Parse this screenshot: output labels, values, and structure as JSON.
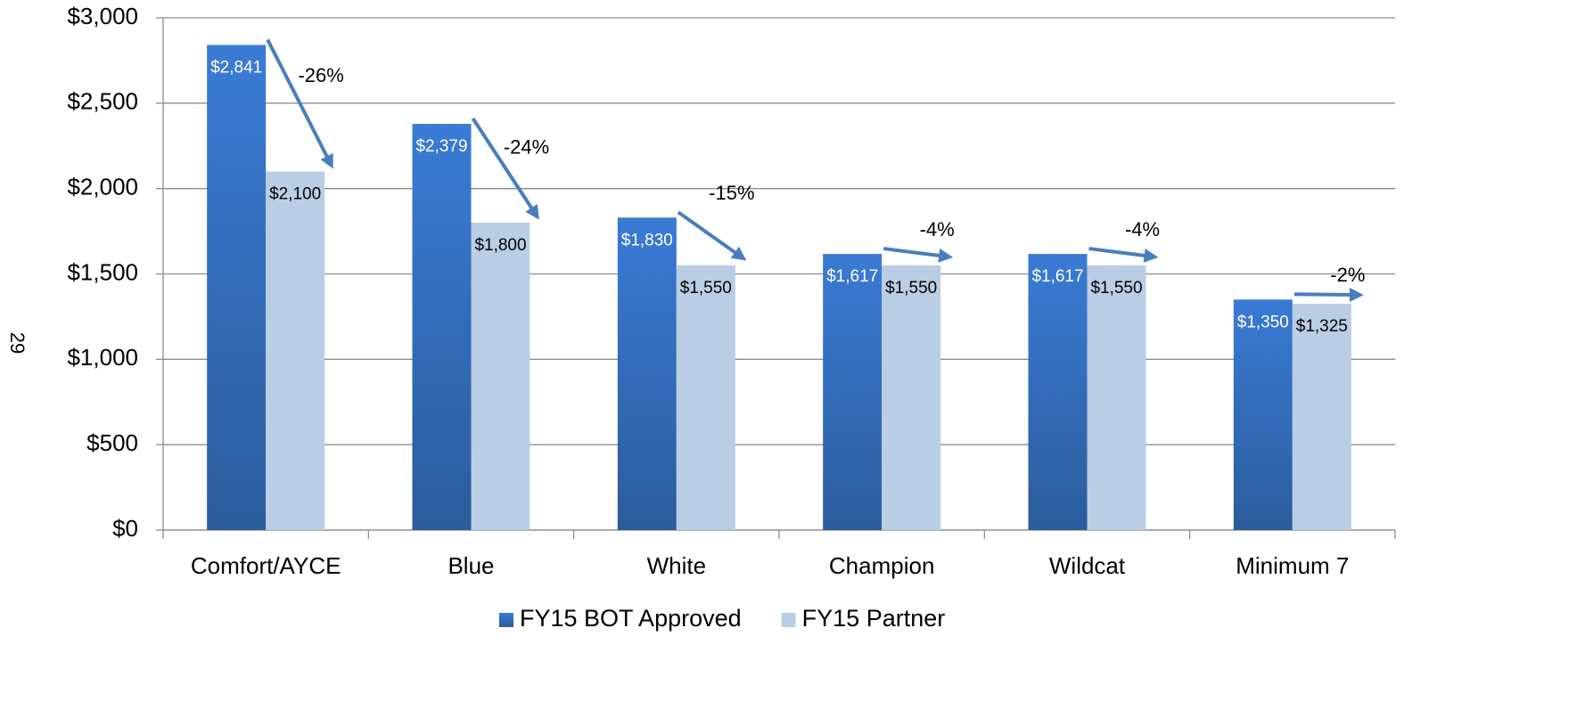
{
  "page_label": "29",
  "chart_data": {
    "type": "bar",
    "categories": [
      "Comfort/AYCE",
      "Blue",
      "White",
      "Champion",
      "Wildcat",
      "Minimum 7"
    ],
    "series": [
      {
        "name": "FY15 BOT Approved",
        "color": "#3a7bd5",
        "values": [
          2841,
          2379,
          1830,
          1617,
          1617,
          1350
        ],
        "value_labels": [
          "$2,841",
          "$2,379",
          "$1,830",
          "$1,617",
          "$1,617",
          "$1,350"
        ]
      },
      {
        "name": "FY15 Partner",
        "color": "#b9cde5",
        "values": [
          2100,
          1800,
          1550,
          1550,
          1550,
          1325
        ],
        "value_labels": [
          "$2,100",
          "$1,800",
          "$1,550",
          "$1,550",
          "$1,550",
          "$1,325"
        ]
      }
    ],
    "annotations": [
      "-26%",
      "-24%",
      "-15%",
      "-4%",
      "-4%",
      "-2%"
    ],
    "ylim": [
      0,
      3000
    ],
    "yticks": [
      {
        "value": 0,
        "label": "$0"
      },
      {
        "value": 500,
        "label": "$500"
      },
      {
        "value": 1000,
        "label": "$1,000"
      },
      {
        "value": 1500,
        "label": "$1,500"
      },
      {
        "value": 2000,
        "label": "$2,000"
      },
      {
        "value": 2500,
        "label": "$2,500"
      },
      {
        "value": 3000,
        "label": "$3,000"
      }
    ],
    "grid": true,
    "legend": "bottom"
  }
}
